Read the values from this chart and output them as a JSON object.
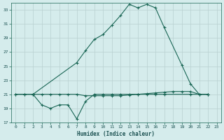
{
  "xlabel": "Humidex (Indice chaleur)",
  "bg_color": "#d5ecec",
  "grid_color": "#b8d0d0",
  "line_color": "#1a6655",
  "xlim": [
    -0.5,
    23.5
  ],
  "ylim": [
    17,
    34
  ],
  "yticks": [
    17,
    19,
    21,
    23,
    25,
    27,
    29,
    31,
    33
  ],
  "xticks": [
    0,
    1,
    2,
    3,
    4,
    5,
    6,
    7,
    8,
    9,
    10,
    11,
    12,
    13,
    14,
    15,
    16,
    17,
    18,
    19,
    20,
    21,
    22,
    23
  ],
  "line_flat_x": [
    0,
    1,
    2,
    3,
    4,
    5,
    6,
    7,
    8,
    9,
    10,
    11,
    12,
    13,
    14,
    15,
    16,
    17,
    18,
    19,
    20,
    21,
    22
  ],
  "line_flat_y": [
    21,
    21,
    21,
    21,
    21,
    21,
    21,
    21,
    20.8,
    20.8,
    20.8,
    20.8,
    20.8,
    20.9,
    21,
    21.1,
    21.2,
    21.3,
    21.4,
    21.4,
    21.4,
    21,
    21
  ],
  "line_low_x": [
    2,
    3,
    4,
    5,
    6,
    7,
    8,
    9,
    10,
    11,
    12,
    13,
    14,
    15,
    16,
    17,
    20,
    21,
    22
  ],
  "line_low_y": [
    21,
    19.5,
    19,
    19.5,
    19.5,
    17.5,
    20,
    21,
    21,
    21,
    21,
    21,
    21,
    21,
    21,
    21,
    21,
    21,
    21
  ],
  "line_high_x": [
    0,
    1,
    2,
    7,
    8,
    9,
    10,
    11,
    12,
    13,
    14,
    15,
    16,
    17,
    19,
    20,
    21,
    22
  ],
  "line_high_y": [
    21,
    21,
    21,
    25.5,
    27.2,
    28.8,
    29.5,
    30.8,
    32.2,
    33.8,
    33.3,
    33.8,
    33.3,
    30.5,
    25.2,
    22.5,
    21,
    21
  ]
}
